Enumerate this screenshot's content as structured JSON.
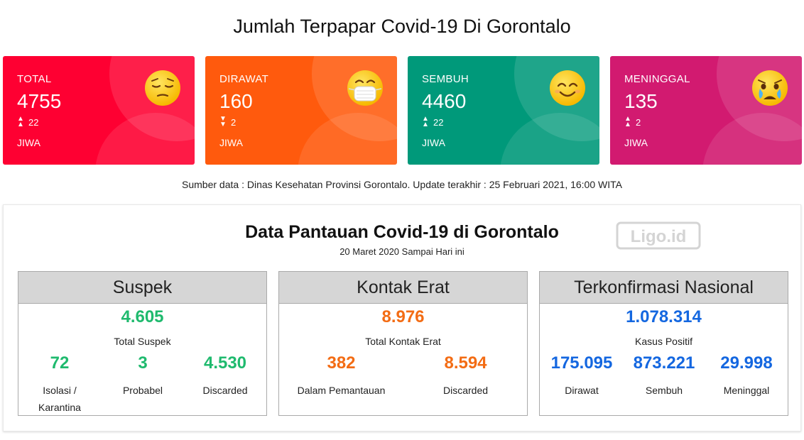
{
  "header": {
    "title": "Jumlah Terpapar Covid-19 Di Gorontalo"
  },
  "cards": [
    {
      "label": "TOTAL",
      "value": "4755",
      "delta": "22",
      "delta_direction": "up",
      "unit": "JIWA",
      "color": "#fe0032",
      "emoji": "pensive-face-icon"
    },
    {
      "label": "DIRAWAT",
      "value": "160",
      "delta": "2",
      "delta_direction": "down",
      "unit": "JIWA",
      "color": "#ff5a0d",
      "emoji": "mask-face-icon"
    },
    {
      "label": "SEMBUH",
      "value": "4460",
      "delta": "22",
      "delta_direction": "up",
      "unit": "JIWA",
      "color": "#00997a",
      "emoji": "smiling-face-icon"
    },
    {
      "label": "MENINGGAL",
      "value": "135",
      "delta": "2",
      "delta_direction": "up",
      "unit": "JIWA",
      "color": "#d21a70",
      "emoji": "crying-face-icon"
    }
  ],
  "source": "Sumber data : Dinas Kesehatan Provinsi Gorontalo. Update terakhir : 25 Februari 2021, 16:00 WITA",
  "panel": {
    "title": "Data Pantauan Covid-19 di Gorontalo",
    "subtitle": "20 Maret 2020 Sampai Hari ini",
    "logo": "Ligo.id",
    "boxes": [
      {
        "title": "Suspek",
        "main_value": "4.605",
        "main_label": "Total Suspek",
        "color": "#1fba6e",
        "stats": [
          {
            "value": "72",
            "label": "Isolasi / Karantina"
          },
          {
            "value": "3",
            "label": "Probabel"
          },
          {
            "value": "4.530",
            "label": "Discarded"
          }
        ]
      },
      {
        "title": "Kontak Erat",
        "main_value": "8.976",
        "main_label": "Total Kontak Erat",
        "color": "#f36c14",
        "stats": [
          {
            "value": "382",
            "label": "Dalam Pemantauan"
          },
          {
            "value": "8.594",
            "label": "Discarded"
          }
        ]
      },
      {
        "title": "Terkonfirmasi Nasional",
        "main_value": "1.078.314",
        "main_label": "Kasus Positif",
        "color": "#1467e0",
        "stats": [
          {
            "value": "175.095",
            "label": "Dirawat"
          },
          {
            "value": "873.221",
            "label": "Sembuh"
          },
          {
            "value": "29.998",
            "label": "Meninggal"
          }
        ]
      }
    ]
  }
}
